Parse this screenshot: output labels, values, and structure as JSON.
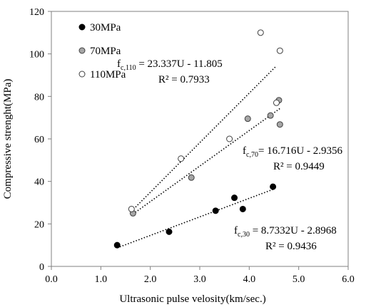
{
  "chart_data": {
    "type": "scatter",
    "xlabel": "Ultrasonic pulse velosity(km/sec.)",
    "ylabel": "Compressive strenght(MPa)",
    "xlim": [
      0,
      6
    ],
    "ylim": [
      0,
      120
    ],
    "x_ticks": [
      "0.0",
      "1.0",
      "2.0",
      "3.0",
      "4.0",
      "5.0",
      "6.0"
    ],
    "y_ticks": [
      "0",
      "20",
      "40",
      "60",
      "80",
      "100",
      "120"
    ],
    "grid": false,
    "legend_position": "top-left",
    "series": [
      {
        "name": "30MPa",
        "marker": "filled",
        "color": "#000000",
        "points": [
          [
            1.33,
            10
          ],
          [
            2.38,
            16.3
          ],
          [
            3.32,
            26.2
          ],
          [
            3.7,
            32.3
          ],
          [
            3.87,
            27
          ],
          [
            4.48,
            37.5
          ]
        ],
        "trendline": {
          "x_range": [
            1.33,
            4.48
          ],
          "slope": 8.7332,
          "intercept": -2.8968
        },
        "equation": {
          "prefix": "f",
          "sub": "c,30",
          "rest": " = 8.7332U - 2.8968",
          "r2": "R² = 0.9436"
        }
      },
      {
        "name": "70MPa",
        "marker": "gray",
        "color": "#a6a6a6",
        "points": [
          [
            1.65,
            25
          ],
          [
            2.83,
            41.8
          ],
          [
            3.97,
            69.5
          ],
          [
            4.43,
            71
          ],
          [
            4.6,
            78.2
          ],
          [
            4.62,
            66.8
          ]
        ],
        "trendline": {
          "x_range": [
            1.65,
            4.62
          ],
          "slope": 16.716,
          "intercept": -2.9356
        },
        "equation": {
          "prefix": "f",
          "sub": "c,70",
          "rest": "= 16.716U - 2.9356",
          "r2": "R² = 0.9449"
        }
      },
      {
        "name": "110MPa",
        "marker": "open",
        "color": "#ffffff",
        "points": [
          [
            1.62,
            27
          ],
          [
            2.62,
            50.7
          ],
          [
            3.6,
            60
          ],
          [
            4.23,
            110
          ],
          [
            4.55,
            77
          ],
          [
            4.62,
            101.5
          ]
        ],
        "trendline": {
          "x_range": [
            1.62,
            4.55
          ],
          "slope": 23.337,
          "intercept": -11.805
        },
        "equation": {
          "prefix": "f",
          "sub": "c,110",
          "rest": " = 23.337U - 11.805",
          "r2": "R² = 0.7933"
        }
      }
    ]
  }
}
